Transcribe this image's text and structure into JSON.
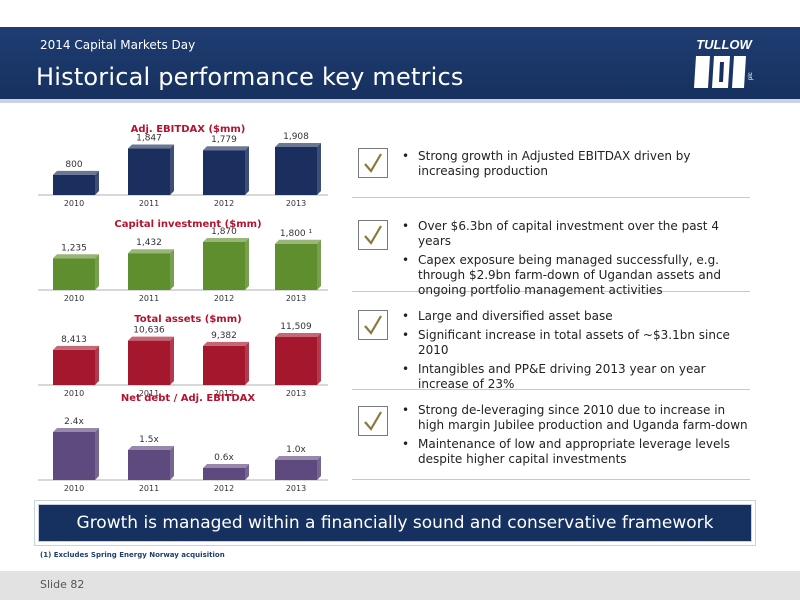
{
  "header": {
    "event": "2014 Capital Markets Day",
    "title": "Historical performance key metrics",
    "logo_text": "TULLOW",
    "logo_sub": "plc"
  },
  "chart_data": [
    {
      "type": "bar",
      "title": "Adj. EBITDAX ($mm)",
      "categories": [
        "2010",
        "2011",
        "2012",
        "2013"
      ],
      "values": [
        800,
        1847,
        1779,
        1908
      ],
      "labels": [
        "800",
        "1,847",
        "1,779",
        "1,908"
      ],
      "color": "#1a2f5e"
    },
    {
      "type": "bar",
      "title": "Capital investment ($mm)",
      "categories": [
        "2010",
        "2011",
        "2012",
        "2013"
      ],
      "values": [
        1235,
        1432,
        1870,
        1800
      ],
      "labels": [
        "1,235",
        "1,432",
        "1,870",
        "1,800 ¹"
      ],
      "color": "#5f8e2f"
    },
    {
      "type": "bar",
      "title": "Total assets ($mm)",
      "categories": [
        "2010",
        "2011",
        "2012",
        "2013"
      ],
      "values": [
        8413,
        10636,
        9382,
        11509
      ],
      "labels": [
        "8,413",
        "10,636",
        "9,382",
        "11,509"
      ],
      "color": "#a5172c"
    },
    {
      "type": "bar",
      "title": "Net debt / Adj. EBITDAX",
      "categories": [
        "2010",
        "2011",
        "2012",
        "2013"
      ],
      "values": [
        2.4,
        1.5,
        0.6,
        1.0
      ],
      "labels": [
        "2.4x",
        "1.5x",
        "0.6x",
        "1.0x"
      ],
      "color": "#5e4a7e"
    }
  ],
  "sections": [
    {
      "bullets": [
        "Strong growth in Adjusted EBITDAX driven by increasing production"
      ]
    },
    {
      "bullets": [
        "Over $6.3bn of capital investment over the past 4 years",
        "Capex exposure being managed successfully, e.g. through $2.9bn farm-down of Ugandan assets and ongoing portfolio management activities"
      ]
    },
    {
      "bullets": [
        "Large and diversified asset base",
        "Significant increase in total assets of ~$3.1bn since 2010",
        "Intangibles and PP&E driving 2013 year on year increase of 23%"
      ]
    },
    {
      "bullets": [
        "Strong de-leveraging since 2010 due to increase in high margin Jubilee production and Uganda farm-down",
        "Maintenance of low and appropriate leverage levels despite higher capital investments"
      ]
    }
  ],
  "banner": "Growth is managed within a financially sound and conservative framework",
  "footnote": "(1)   Excludes Spring Energy Norway acquisition",
  "footer": {
    "slide": "Slide 82"
  },
  "colors": {
    "navy": "#16315f",
    "accent": "#b3132f",
    "checkmark": "#8a7a3a"
  }
}
